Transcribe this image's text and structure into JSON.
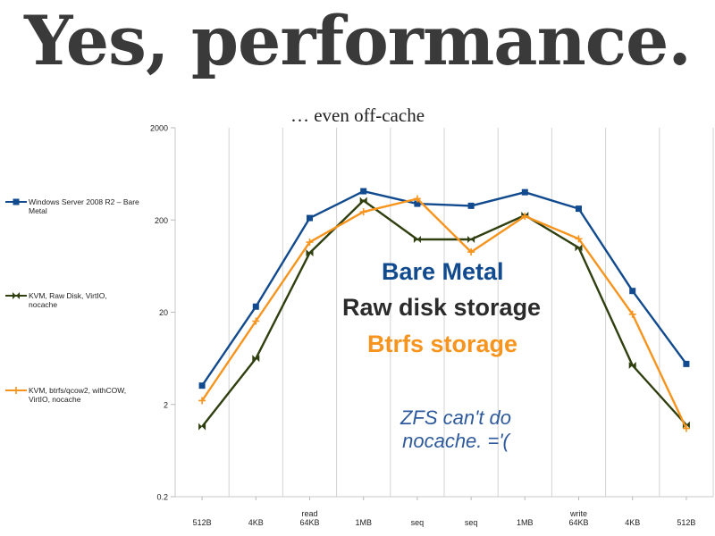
{
  "title": "Yes, performance.",
  "subtitle": "… even off-cache",
  "annotations": {
    "bare_metal": "Bare Metal",
    "raw_disk": "Raw disk storage",
    "btrfs": "Btrfs storage",
    "zfs_line1": "ZFS can't do",
    "zfs_line2": "nocache. ='("
  },
  "colors": {
    "bare_metal": "#114a8e",
    "raw_disk": "#2f3f0f",
    "btrfs": "#f7941d",
    "grid": "#d3d3d3",
    "zfs_text": "#2e5a9c"
  },
  "chart_data": {
    "type": "line",
    "y_scale": "log",
    "ylim": [
      0.2,
      2000
    ],
    "yticks": [
      "0.2",
      "2",
      "20",
      "200",
      "2000"
    ],
    "ytick_values": [
      0.2,
      2,
      20,
      200,
      2000
    ],
    "grid": "vertical",
    "legend_position": "left",
    "categories": [
      [
        "512B"
      ],
      [
        "4KB"
      ],
      [
        "read",
        "64KB"
      ],
      [
        "1MB"
      ],
      [
        "seq"
      ],
      [
        "seq"
      ],
      [
        "1MB"
      ],
      [
        "write",
        "64KB"
      ],
      [
        "4KB"
      ],
      [
        "512B"
      ]
    ],
    "series": [
      {
        "name": "Windows Server 2008 R2 – Bare Metal",
        "legend_lines": [
          "Windows Server 2008 R2 – Bare",
          "Metal"
        ],
        "color": "#114a8e",
        "marker": "square",
        "values": [
          3.2,
          23,
          210,
          410,
          300,
          285,
          400,
          265,
          34,
          5.5
        ]
      },
      {
        "name": "KVM, Raw Disk, VirtIO, nocache",
        "legend_lines": [
          "KVM, Raw Disk, VirtIO,",
          "nocache"
        ],
        "color": "#2f3f0f",
        "marker": "bowtie",
        "values": [
          1.15,
          6.3,
          88,
          325,
          123,
          123,
          225,
          100,
          5.3,
          1.2
        ]
      },
      {
        "name": "KVM, btrfs/qcow2, withCOW, VirtIO, nocache",
        "legend_lines": [
          "KVM, btrfs/qcow2, withCOW,",
          "VirtIO, nocache"
        ],
        "color": "#f7941d",
        "marker": "plus",
        "values": [
          2.2,
          16,
          115,
          245,
          340,
          90,
          220,
          125,
          19,
          1.1
        ]
      }
    ]
  }
}
